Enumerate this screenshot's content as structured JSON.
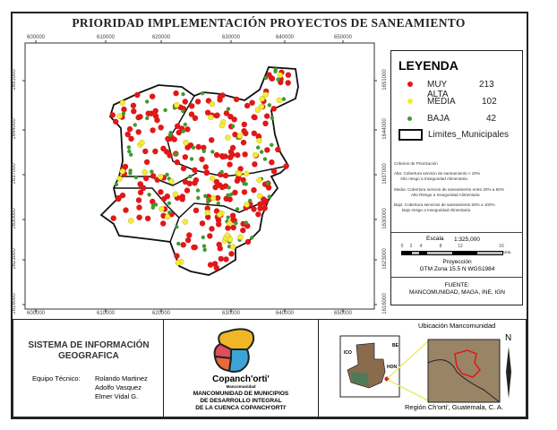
{
  "title": "PRIORIDAD IMPLEMENTACIÓN PROYECTOS DE SANEAMIENTO",
  "map": {
    "x_ticks": [
      "600000",
      "610000",
      "620000",
      "630000",
      "640000",
      "650000"
    ],
    "y_ticks": [
      "1651000",
      "1644000",
      "1637000",
      "1630000",
      "1623000",
      "1616000"
    ],
    "colors": {
      "muy_alta": "#e01818",
      "media": "#f4ec3a",
      "baja": "#3f9a2e",
      "boundary": "#111111"
    }
  },
  "legend": {
    "title": "LEYENDA",
    "items": [
      {
        "label": "MUY ALTA",
        "count": "213",
        "color": "#e01818"
      },
      {
        "label": "MEDIA",
        "count": "102",
        "color": "#f4ec3a"
      },
      {
        "label": "BAJA",
        "count": "42",
        "color": "#3f9a2e"
      }
    ],
    "boundary_label": "Limites_Municipales"
  },
  "criteria": {
    "title": "Criterios de Priorización",
    "lines": [
      "Alta: Cobertura servicio de saneamiento < 20%",
      "Alto riesgo a Inseguridad Alimentaria",
      "Media: Cobertura servicio de saneamiento entre 20% a 50%",
      "Alto Riesgo a Inseguridad Alimentaria",
      "Bajo: Cobertura servicios de saneamiento 50% a 100%",
      "Bajo riesgo a Inseguridad Alimentaria"
    ]
  },
  "scale": {
    "label": "Escala",
    "ratio": "1:325,000",
    "ticks": [
      "0",
      "2",
      "4",
      "8",
      "12",
      "16"
    ],
    "unit": "Kms.",
    "projection_label": "Proyección",
    "projection": "GTM Zona 15.5 N WGS1984"
  },
  "source": {
    "label": "FUENTE:",
    "value": "MANCOMUNIDAD, MAGA, INE, IGN"
  },
  "footer": {
    "system_title_1": "SISTEMA DE INFORMACIÓN",
    "system_title_2": "GEOGRAFICA",
    "team_label": "Equipo Técnico:",
    "team": [
      "Rolando Martinez",
      "Adolfo Vasquez",
      "Elmer Vidal G."
    ],
    "logo_text": "Copanch'orti'",
    "logo_sub": "Mancomunidad",
    "org_lines": [
      "MANCOMUNIDAD DE MUNICIPIOS",
      "DE DESARROLLO INTEGRAL",
      "DE LA CUENCA COPANCH'ORTI'"
    ],
    "location_title": "Ubicación Mancomunidad",
    "location_caption": "Región Ch'orti', Guatemala, C. A.",
    "north": "N",
    "inset_labels": [
      "ICO",
      "HON",
      "BE"
    ]
  }
}
